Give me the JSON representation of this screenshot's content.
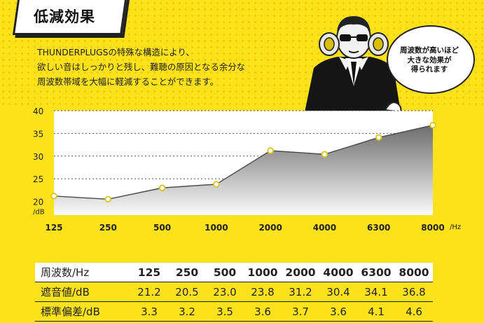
{
  "header": {
    "title": "低減効果",
    "intro_lines": [
      "THUNDERPLUGSの特殊な構造により、",
      "欲しい音はしっかりと残し、難聴の原因となる余分な",
      "周波数帯域を大幅に軽減することができます。"
    ]
  },
  "bubble": {
    "lines": [
      "周波数が高いほど",
      "大きな効果が",
      "得られます"
    ]
  },
  "chart_data": {
    "type": "area",
    "categories": [
      "125",
      "250",
      "500",
      "1000",
      "2000",
      "4000",
      "6300",
      "8000"
    ],
    "values": [
      21.2,
      20.5,
      23.0,
      23.8,
      31.2,
      30.4,
      34.1,
      36.8
    ],
    "xunit": "/Hz",
    "yunit": "/dB",
    "y_ticks": [
      "40",
      "35",
      "30",
      "25",
      "20"
    ],
    "ylim": [
      17,
      40
    ],
    "grid": true
  },
  "table": {
    "header_label": "周波数/Hz",
    "rows": [
      {
        "label": "遮音値/dB",
        "values": [
          "21.2",
          "20.5",
          "23.0",
          "23.8",
          "31.2",
          "30.4",
          "34.1",
          "36.8"
        ]
      },
      {
        "label": "標準偏差/dB",
        "values": [
          "3.3",
          "3.2",
          "3.5",
          "3.6",
          "3.7",
          "3.6",
          "4.1",
          "4.6"
        ]
      }
    ]
  },
  "colors": {
    "background": "#fbe21a",
    "area_top": "#6d6d6d",
    "area_bottom": "#fafafa",
    "point_stroke": "#d6c41a"
  }
}
